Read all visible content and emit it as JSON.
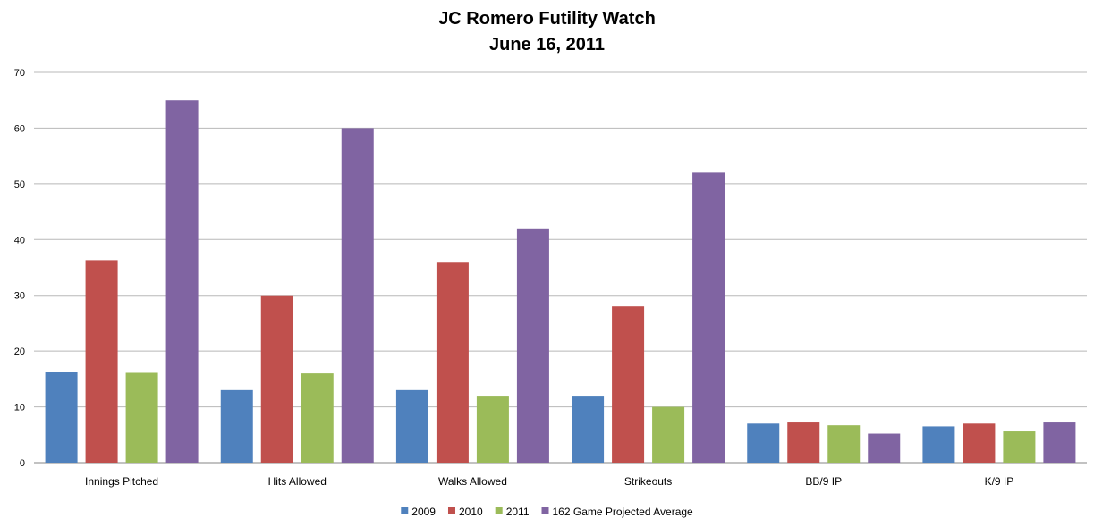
{
  "chart_data": {
    "type": "bar",
    "title": "JC Romero Futility Watch",
    "subtitle": "June 16, 2011",
    "categories": [
      "Innings Pitched",
      "Hits Allowed",
      "Walks Allowed",
      "Strikeouts",
      "BB/9 IP",
      "K/9 IP"
    ],
    "series": [
      {
        "name": "2009",
        "color": "#4F81BD",
        "values": [
          16.2,
          13,
          13,
          12,
          7.0,
          6.5
        ]
      },
      {
        "name": "2010",
        "color": "#C0504D",
        "values": [
          36.3,
          30,
          36,
          28,
          7.2,
          7.0
        ]
      },
      {
        "name": "2011",
        "color": "#9BBB59",
        "values": [
          16.1,
          16,
          12,
          10,
          6.7,
          5.6
        ]
      },
      {
        "name": "162 Game Projected Average",
        "color": "#8064A2",
        "values": [
          65,
          60,
          42,
          52,
          5.2,
          7.2
        ]
      }
    ],
    "ylim": [
      0,
      70
    ],
    "yticks": [
      "0",
      "10",
      "20",
      "30",
      "40",
      "50",
      "60",
      "70"
    ],
    "grid": true,
    "legend_position": "bottom"
  }
}
